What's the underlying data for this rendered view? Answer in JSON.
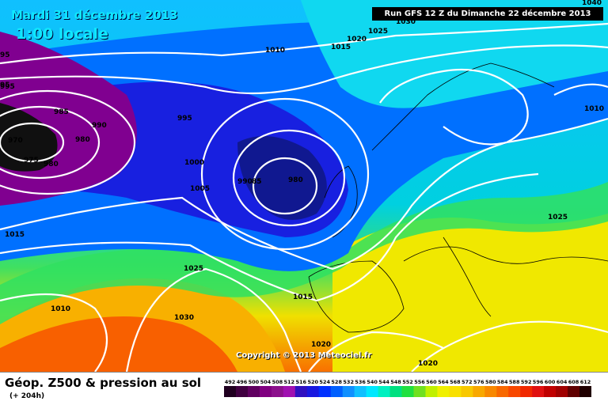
{
  "header": {
    "date": "Mardi 31 décembre 2013",
    "local_time": "1:00 locale",
    "run_info": "Run GFS 12 Z du Dimanche 22 décembre 2013"
  },
  "copyright": "Copyright © 2013 Meteociel.fr",
  "footer": {
    "field_title": "Géop. Z500 & pression au sol",
    "forecast_hour": "(+ 204h)"
  },
  "color_scale": {
    "values": [
      "492",
      "496",
      "500",
      "504",
      "508",
      "512",
      "516",
      "520",
      "524",
      "528",
      "532",
      "536",
      "540",
      "544",
      "548",
      "552",
      "556",
      "560",
      "564",
      "568",
      "572",
      "576",
      "580",
      "584",
      "588",
      "592",
      "596",
      "600",
      "604",
      "608",
      "612"
    ],
    "colors": [
      "#200020",
      "#400040",
      "#600060",
      "#800080",
      "#8c108c",
      "#a010b0",
      "#3010c0",
      "#1818e0",
      "#0030ff",
      "#0060ff",
      "#1090ff",
      "#10c0ff",
      "#00e8ff",
      "#00f0c0",
      "#00e080",
      "#20e040",
      "#70e020",
      "#c0f000",
      "#f0f000",
      "#f8e000",
      "#f8c800",
      "#f8a800",
      "#f88800",
      "#f86800",
      "#f84800",
      "#f02800",
      "#e01010",
      "#c00000",
      "#a00000",
      "#600000",
      "#200000"
    ]
  },
  "isobar_labels": [
    {
      "id": "p1010a",
      "text": "1010"
    },
    {
      "id": "p1015a",
      "text": "1015"
    },
    {
      "id": "p1020a",
      "text": "1020"
    },
    {
      "id": "p1025a",
      "text": "1025"
    },
    {
      "id": "p1010b",
      "text": "1010"
    },
    {
      "id": "p995a",
      "text": "995"
    },
    {
      "id": "p985",
      "text": "985"
    },
    {
      "id": "p990a",
      "text": "990"
    },
    {
      "id": "p970",
      "text": "970"
    },
    {
      "id": "p980a",
      "text": "980"
    },
    {
      "id": "p975",
      "text": "975"
    },
    {
      "id": "p980b",
      "text": "980"
    },
    {
      "id": "p995b",
      "text": "995"
    },
    {
      "id": "p1000",
      "text": "1000"
    },
    {
      "id": "p1005",
      "text": "1005"
    },
    {
      "id": "p990b",
      "text": "990"
    },
    {
      "id": "p85",
      "text": "85"
    },
    {
      "id": "p980c",
      "text": "980"
    },
    {
      "id": "p1015b",
      "text": "1015"
    },
    {
      "id": "p1025b",
      "text": "1025"
    },
    {
      "id": "p1010c",
      "text": "1010"
    },
    {
      "id": "p1030",
      "text": "1030"
    },
    {
      "id": "p1015c",
      "text": "1015"
    },
    {
      "id": "p1025c",
      "text": "1025"
    },
    {
      "id": "p1020b",
      "text": "1020"
    },
    {
      "id": "p1020c",
      "text": "1020"
    },
    {
      "id": "p95a",
      "text": "95"
    },
    {
      "id": "p95b",
      "text": "95"
    },
    {
      "id": "p1040",
      "text": "1040"
    },
    {
      "id": "p1030b",
      "text": "1030"
    }
  ]
}
